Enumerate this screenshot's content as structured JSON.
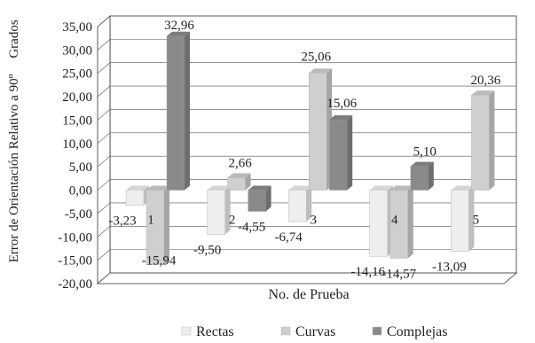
{
  "chart_data": {
    "type": "bar",
    "xlabel": "No. de Prueba",
    "ylabel": "Error de Orientación Relativo a 90º",
    "yunit": "Grados",
    "categories": [
      "1",
      "2",
      "3",
      "4",
      "5"
    ],
    "ylim": [
      -20,
      35
    ],
    "yticks": [
      "35,00",
      "30,00",
      "25,00",
      "20,00",
      "15,00",
      "10,00",
      "5,00",
      "0,00",
      "-5,00",
      "-10,00",
      "-15,00",
      "-20,00"
    ],
    "ytick_values": [
      35,
      30,
      25,
      20,
      15,
      10,
      5,
      0,
      -5,
      -10,
      -15,
      -20
    ],
    "grid": true,
    "legend_position": "bottom",
    "series": [
      {
        "name": "Rectas",
        "values": [
          -3.23,
          -9.5,
          -6.74,
          -14.16,
          -13.09
        ],
        "labels": [
          "-3,23",
          "-9,50",
          "-6,74",
          "-14,16",
          "-13,09"
        ],
        "color": "#eeeeee"
      },
      {
        "name": "Curvas",
        "values": [
          -15.94,
          2.66,
          25.06,
          -14.57,
          20.36
        ],
        "labels": [
          "-15,94",
          "2,66",
          "25,06",
          "-14,57",
          "20,36"
        ],
        "color": "#cfcfcf"
      },
      {
        "name": "Complejas",
        "values": [
          32.96,
          -4.55,
          15.06,
          5.1,
          null
        ],
        "labels": [
          "32,96",
          "-4,55",
          "15,06",
          "5,10",
          ""
        ],
        "color": "#8a8a8a"
      }
    ]
  }
}
